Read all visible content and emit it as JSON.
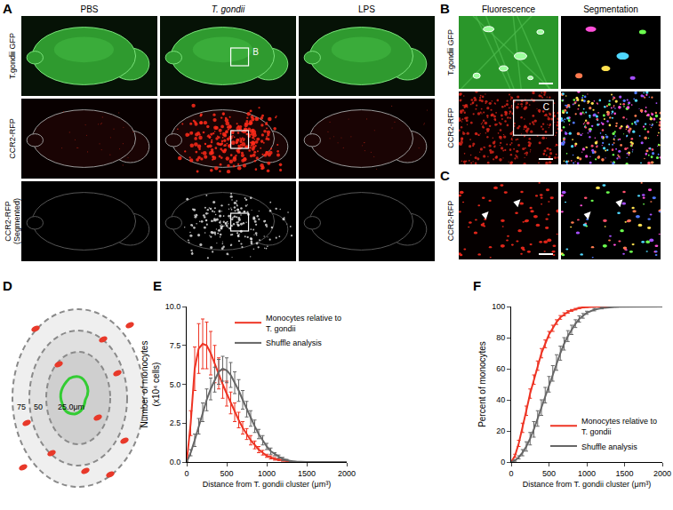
{
  "panels": {
    "A": {
      "label": "A",
      "columns": [
        "PBS",
        "T. gondii",
        "LPS"
      ],
      "rows": [
        "T.gondii GFP",
        "CCR2-RFP",
        "CCR2-RFP (Segmented)"
      ],
      "inset": "B"
    },
    "B": {
      "label": "B",
      "columns": [
        "Fluorescence",
        "Segmentation"
      ],
      "rows": [
        "T.gondii GFP",
        "CCR2-RFP"
      ],
      "inset": "C"
    },
    "C": {
      "label": "C",
      "rows": [
        "CCR2-RFP"
      ]
    },
    "D": {
      "label": "D",
      "rings": [
        "75",
        "50",
        "25.0μm"
      ]
    }
  },
  "chart_data": [
    {
      "type": "line",
      "panel_label": "E",
      "x_label": "Distance from T. gondii cluster (μm³)",
      "y_label": "Number of monocytes (x10⁴ cells)",
      "x": [
        0,
        50,
        100,
        150,
        200,
        250,
        300,
        350,
        400,
        450,
        500,
        550,
        600,
        650,
        700,
        750,
        800,
        850,
        900,
        950,
        1000,
        1050,
        1100,
        1150,
        1200,
        1250,
        1300,
        1350,
        1400,
        1500,
        2000
      ],
      "series": [
        {
          "name": "Monocytes relative to T. gondii",
          "color": "#ee3424",
          "values": [
            0,
            2.5,
            6,
            7.3,
            7.6,
            7.5,
            7,
            6.3,
            5.7,
            5,
            4.4,
            3.8,
            3.2,
            2.7,
            2.2,
            1.8,
            1.4,
            1.1,
            0.8,
            0.6,
            0.4,
            0.3,
            0.2,
            0.15,
            0.1,
            0.05,
            0.02,
            0,
            0,
            0,
            0
          ],
          "error": [
            0,
            0.8,
            1.4,
            1.6,
            1.6,
            1.5,
            1.4,
            1.2,
            1.0,
            0.9,
            0.8,
            0.7,
            0.6,
            0.5,
            0.4,
            0.35,
            0.3,
            0.25,
            0.2,
            0.15,
            0.1,
            0.1,
            0.08,
            0.06,
            0.05,
            0.03,
            0.02,
            0,
            0,
            0,
            0
          ]
        },
        {
          "name": "Shuffle analysis",
          "color": "#666666",
          "values": [
            0,
            0.6,
            1.4,
            2.3,
            3.2,
            4,
            4.7,
            5.3,
            5.8,
            6,
            5.9,
            5.6,
            5.1,
            4.6,
            4,
            3.4,
            2.8,
            2.3,
            1.8,
            1.4,
            1,
            0.7,
            0.5,
            0.35,
            0.2,
            0.12,
            0.06,
            0.03,
            0.01,
            0,
            0
          ],
          "error": [
            0,
            0.2,
            0.4,
            0.5,
            0.6,
            0.7,
            0.7,
            0.8,
            0.8,
            0.8,
            0.8,
            0.8,
            0.7,
            0.7,
            0.6,
            0.5,
            0.5,
            0.4,
            0.3,
            0.3,
            0.2,
            0.2,
            0.1,
            0.1,
            0.1,
            0.05,
            0.03,
            0.02,
            0.01,
            0,
            0
          ]
        }
      ],
      "xlim": [
        0,
        2000
      ],
      "xticks": [
        0,
        500,
        1000,
        1500,
        2000
      ],
      "ylim": [
        0,
        10
      ],
      "yticks": [
        {
          "value": 0,
          "label": "0.0"
        },
        2.5,
        {
          "value": 5,
          "label": "5.0"
        },
        7.5,
        {
          "value": 10,
          "label": "10.0"
        }
      ],
      "grid": false,
      "legend": "upper right"
    },
    {
      "type": "line",
      "panel_label": "F",
      "x_label": "Distance from T. gondii cluster (μm³)",
      "y_label": "Percent of monocytes",
      "x": [
        0,
        50,
        100,
        150,
        200,
        250,
        300,
        350,
        400,
        450,
        500,
        550,
        600,
        650,
        700,
        750,
        800,
        850,
        900,
        950,
        1000,
        1100,
        1200,
        1400,
        2000
      ],
      "series": [
        {
          "name": "Monocytes relative to T. gondii",
          "color": "#ee3424",
          "values": [
            0,
            4,
            12,
            22,
            33,
            44,
            53,
            62,
            70,
            76,
            82,
            86,
            90,
            93,
            95,
            96.5,
            97.5,
            98.3,
            99,
            99.4,
            99.7,
            99.9,
            100,
            100,
            100
          ],
          "error": [
            0,
            1,
            2,
            3,
            3,
            3,
            3,
            3,
            3,
            2.5,
            2,
            2,
            1.5,
            1.2,
            1,
            0.8,
            0.6,
            0.5,
            0.4,
            0.3,
            0.2,
            0.1,
            0,
            0,
            0
          ]
        },
        {
          "name": "Shuffle analysis",
          "color": "#666666",
          "values": [
            0,
            1,
            3,
            6,
            10,
            15,
            21,
            28,
            35,
            43,
            50,
            57,
            64,
            70,
            76,
            81,
            85,
            89,
            92,
            94,
            96,
            98,
            99,
            99.8,
            100
          ],
          "error": [
            0,
            0.5,
            1,
            2,
            3,
            4,
            5,
            5,
            5,
            5,
            5,
            5,
            5,
            4.5,
            4,
            3.5,
            3,
            2.5,
            2,
            1.5,
            1,
            0.8,
            0.5,
            0.2,
            0
          ]
        }
      ],
      "xlim": [
        0,
        2000
      ],
      "xticks": [
        0,
        500,
        1000,
        1500,
        2000
      ],
      "ylim": [
        0,
        100
      ],
      "yticks": [
        0,
        20,
        40,
        60,
        80,
        100
      ],
      "grid": false,
      "legend": "lower right"
    }
  ]
}
